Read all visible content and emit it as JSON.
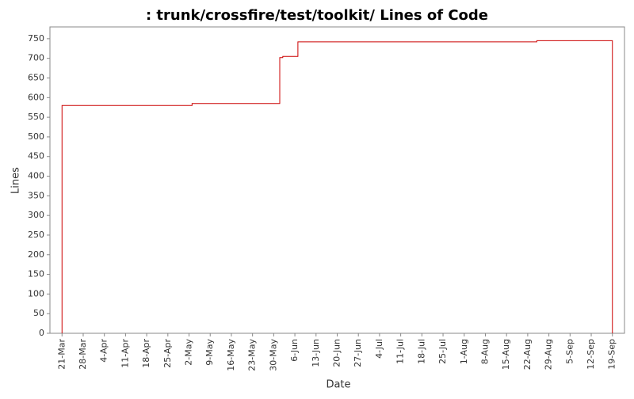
{
  "chart_data": {
    "type": "line",
    "step": "post",
    "title": ": trunk/crossfire/test/toolkit/ Lines of Code",
    "x_label": "Date",
    "y_label": "Lines",
    "x": [
      "21-Mar",
      "21-Mar",
      "3-May",
      "1-Jun",
      "2-Jun",
      "7-Jun",
      "25-Aug",
      "19-Sep",
      "19-Sep"
    ],
    "series": [
      {
        "name": "Lines",
        "color": "#cc0000",
        "values": [
          0,
          580,
          585,
          702,
          705,
          742,
          745,
          745,
          0
        ]
      }
    ],
    "xlim": [
      "17-Mar",
      "23-Sep"
    ],
    "xticks": [
      "21-Mar",
      "28-Mar",
      "4-Apr",
      "11-Apr",
      "18-Apr",
      "25-Apr",
      "2-May",
      "9-May",
      "16-May",
      "23-May",
      "30-May",
      "6-Jun",
      "13-Jun",
      "20-Jun",
      "27-Jun",
      "4-Jul",
      "11-Jul",
      "18-Jul",
      "25-Jul",
      "1-Aug",
      "8-Aug",
      "15-Aug",
      "22-Aug",
      "29-Aug",
      "5-Sep",
      "12-Sep",
      "19-Sep"
    ],
    "ylim": [
      0,
      780
    ],
    "yticks": [
      0,
      50,
      100,
      150,
      200,
      250,
      300,
      350,
      400,
      450,
      500,
      550,
      600,
      650,
      700,
      750
    ],
    "grid": false
  }
}
